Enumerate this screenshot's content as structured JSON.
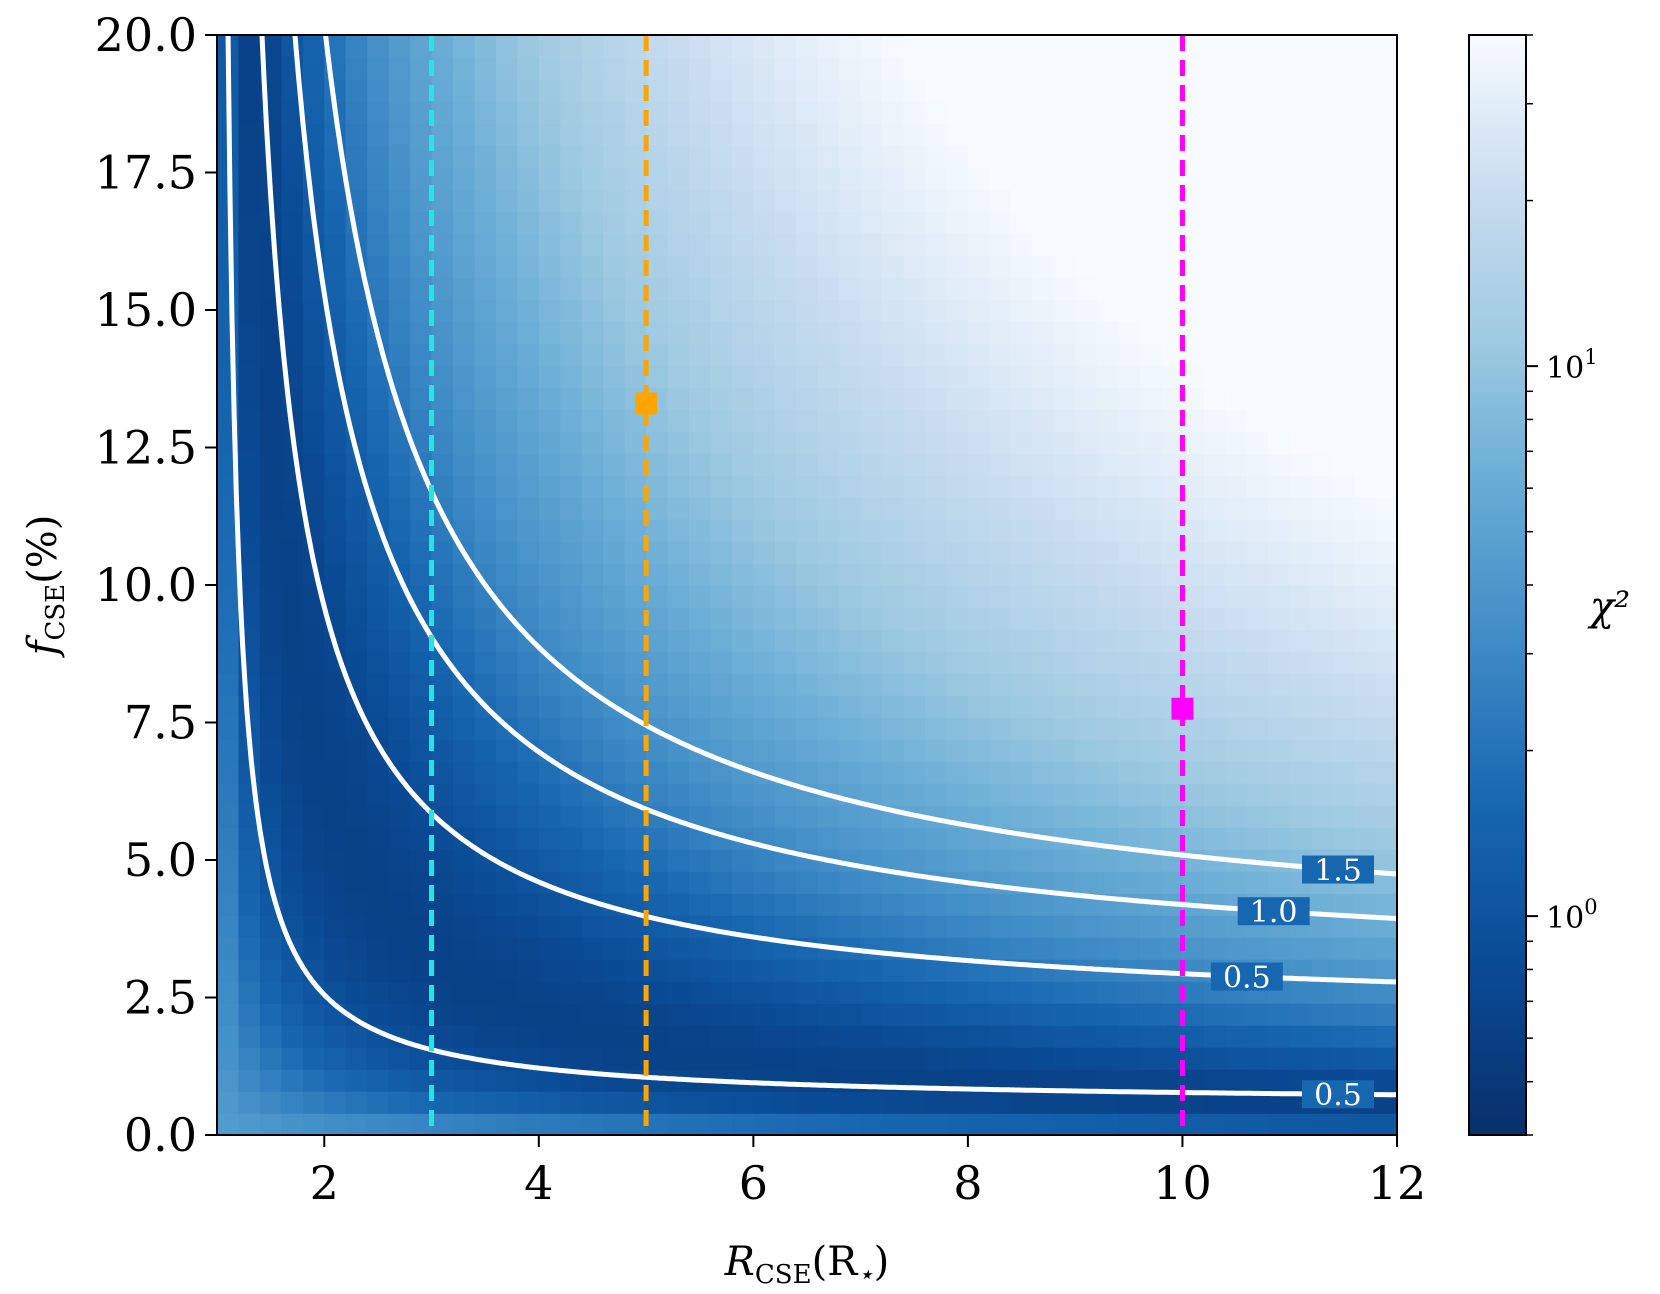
{
  "chart_data": {
    "type": "heatmap",
    "title": "",
    "xlabel": {
      "main": "R",
      "sub": "CSE",
      "suffix": "(R",
      "suffix_sub": "⋆",
      "close": ")"
    },
    "ylabel": {
      "main": "f",
      "sub": "CSE",
      "suffix": "(%)"
    },
    "xlim": [
      1,
      12
    ],
    "ylim": [
      0,
      20
    ],
    "x_ticks": [
      2,
      4,
      6,
      8,
      10,
      12
    ],
    "y_ticks": [
      0,
      2.5,
      5,
      7.5,
      10,
      12.5,
      15,
      17.5,
      20
    ],
    "y_tick_labels": [
      "0.0",
      "2.5",
      "5.0",
      "7.5",
      "10.0",
      "12.5",
      "15.0",
      "17.5",
      "20.0"
    ],
    "colormap": "Blues_r",
    "colorbar": {
      "label": "χ²",
      "scale": "log",
      "range": [
        0.4,
        40
      ],
      "ticks": [
        {
          "value": 1,
          "base": "10",
          "exp": "0"
        },
        {
          "value": 10,
          "base": "10",
          "exp": "1"
        }
      ]
    },
    "contours": [
      {
        "level": "0.5",
        "k": 2.0,
        "offset": 0.55,
        "label_x": 11.45
      },
      {
        "level": "0.5",
        "k": 7.5,
        "offset": 2.1,
        "label_x": 10.6
      },
      {
        "level": "1.0",
        "k": 12.5,
        "offset": 2.8,
        "label_x": 10.85
      },
      {
        "level": "1.5",
        "k": 17.0,
        "offset": 3.2,
        "label_x": 11.45
      }
    ],
    "vertical_lines": [
      {
        "x": 3,
        "color": "#22e6e6"
      },
      {
        "x": 5,
        "color": "#ffa500"
      },
      {
        "x": 10,
        "color": "#ff00ff"
      }
    ],
    "markers": [
      {
        "x": 5,
        "y": 13.3,
        "color": "#ffa500",
        "shape": "square"
      },
      {
        "x": 10,
        "y": 7.75,
        "color": "#ff00ff",
        "shape": "square"
      }
    ]
  }
}
